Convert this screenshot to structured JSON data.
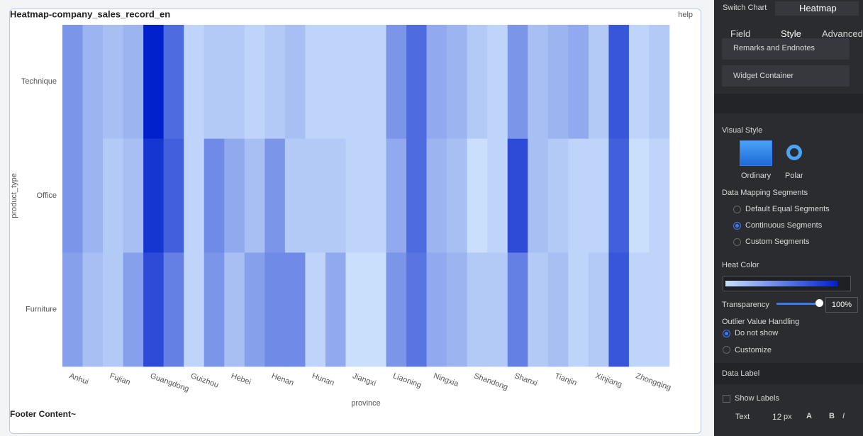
{
  "chart_data": {
    "type": "heatmap",
    "title": "Heatmap-company_sales_record_en",
    "help": "help",
    "footer": "Footer Content~",
    "x_label": "province",
    "y_label": "product_type",
    "categories": [
      "Anhui",
      null,
      "Fujian",
      null,
      "Guangdong",
      null,
      "Guizhou",
      null,
      "Hebei",
      null,
      "Henan",
      null,
      "Hunan",
      null,
      "Jiangxi",
      null,
      "Liaoning",
      null,
      "Ningxia",
      null,
      "Shandong",
      null,
      "Shanxi",
      null,
      "Tianjin",
      null,
      "Xinjiang",
      null,
      "Zhongqing",
      null
    ],
    "rows": [
      "Technique",
      "Office",
      "Furniture"
    ],
    "values": [
      [
        45,
        30,
        25,
        30,
        100,
        65,
        15,
        20,
        20,
        15,
        20,
        25,
        15,
        15,
        15,
        15,
        45,
        65,
        35,
        30,
        20,
        15,
        45,
        25,
        30,
        35,
        20,
        75,
        15,
        20
      ],
      [
        45,
        30,
        20,
        25,
        90,
        70,
        15,
        50,
        35,
        25,
        45,
        20,
        20,
        20,
        15,
        15,
        35,
        65,
        30,
        25,
        10,
        15,
        80,
        25,
        20,
        15,
        15,
        70,
        10,
        15
      ],
      [
        40,
        25,
        20,
        40,
        80,
        55,
        15,
        45,
        25,
        40,
        50,
        50,
        15,
        35,
        10,
        10,
        45,
        60,
        35,
        30,
        20,
        20,
        55,
        20,
        25,
        15,
        20,
        75,
        15,
        15
      ]
    ],
    "color_range": [
      "#c9dffc",
      "#0021cc"
    ]
  },
  "panel": {
    "switch_chart": "Switch Chart",
    "chart_type": "Heatmap",
    "tabs": [
      "Field",
      "Style",
      "Advanced"
    ],
    "sections": [
      "Remarks and Endnotes",
      "Widget Container"
    ],
    "visual_style": "Visual Style",
    "styles": [
      "Ordinary",
      "Polar"
    ],
    "mapping": "Data Mapping Segments",
    "mapping_options": [
      "Default Equal Segments",
      "Continuous Segments",
      "Custom Segments"
    ],
    "heat_color": "Heat Color",
    "transparency": "Transparency",
    "transparency_value": "100%",
    "outlier": "Outlier Value Handling",
    "outlier_options": [
      "Do not show",
      "Customize"
    ],
    "data_label": "Data Label",
    "show_labels": "Show Labels",
    "text": "Text",
    "font_size": "12",
    "unit": "px",
    "font_a": "A",
    "bold": "B",
    "italic": "I"
  }
}
